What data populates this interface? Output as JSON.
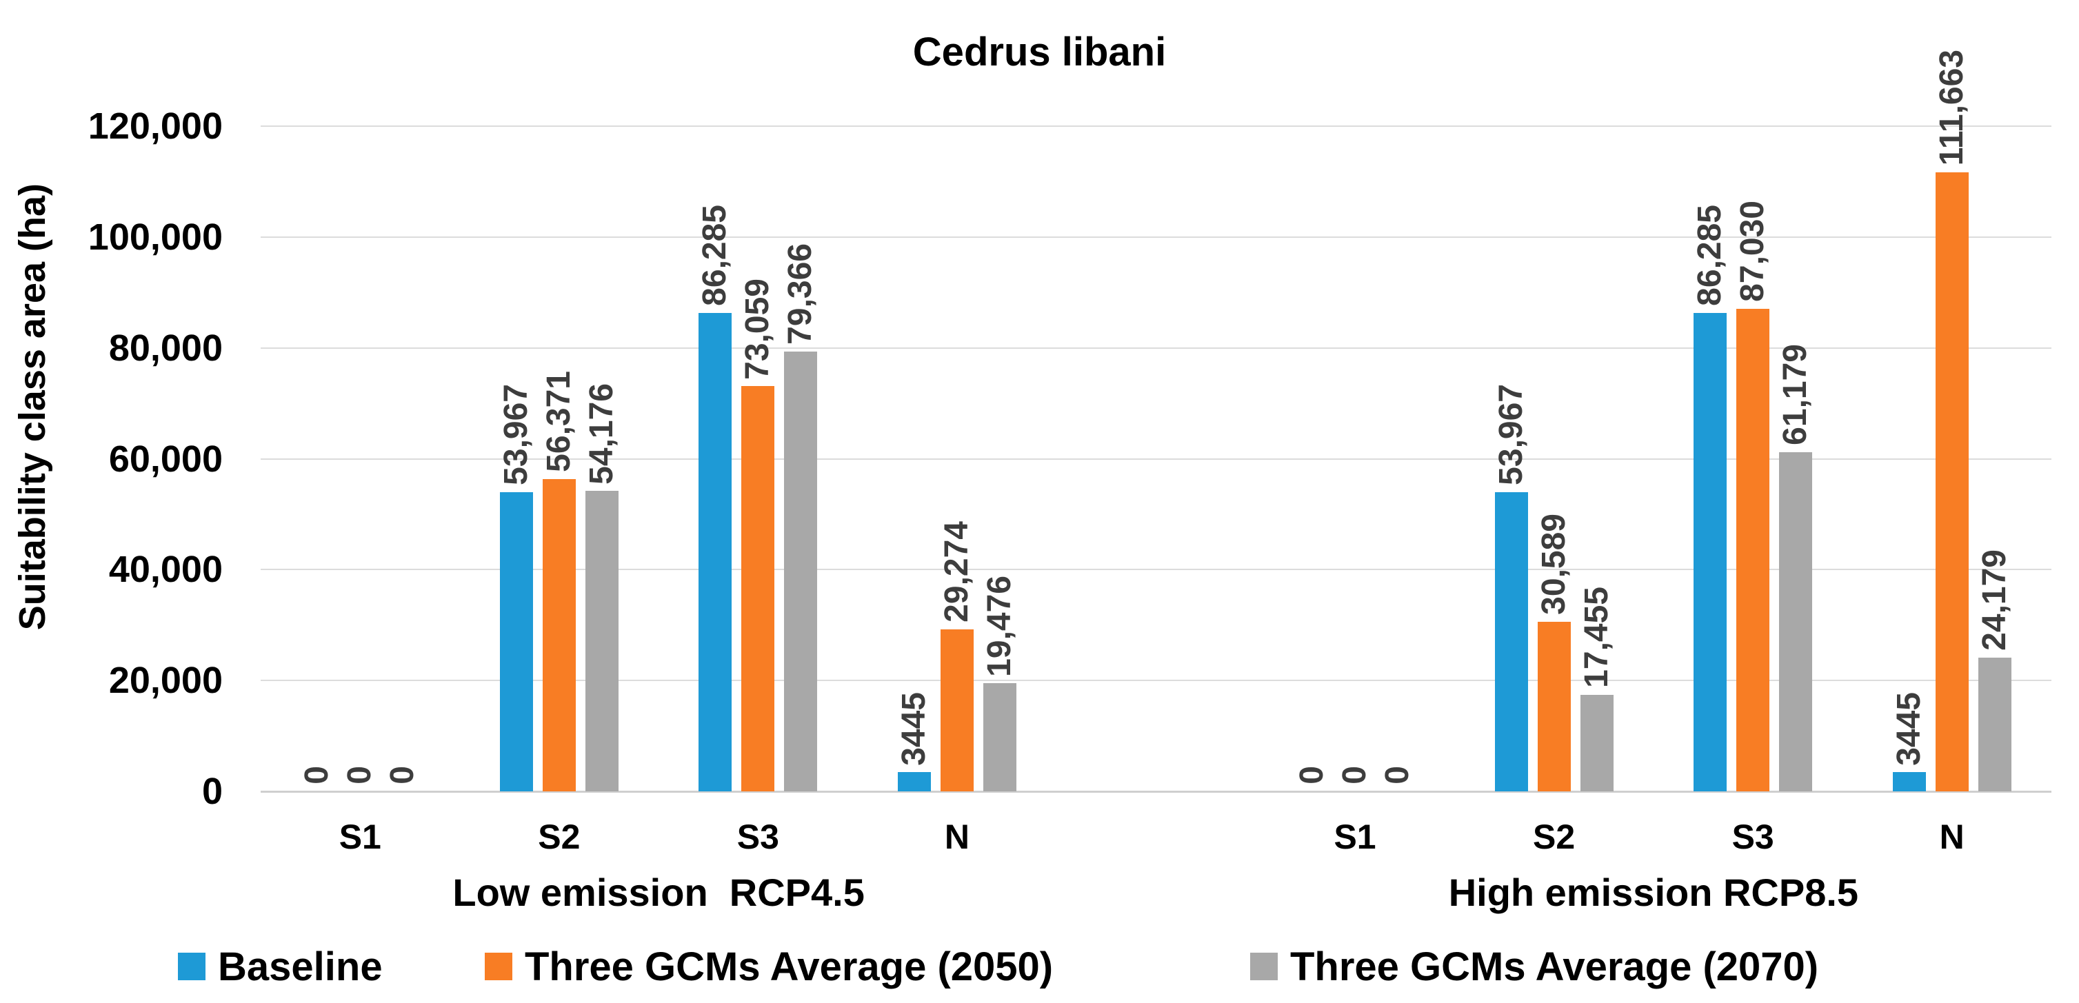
{
  "title": "Cedrus libani",
  "y_axis": {
    "label": "Suitability class area (ha)",
    "tick_labels_top_down": [
      "120,000",
      "100,000",
      "80,000",
      "60,000",
      "40,000",
      "20,000",
      "0"
    ]
  },
  "legend": [
    {
      "name": "Baseline",
      "color": "#1e9ad6"
    },
    {
      "name": "Three GCMs Average (2050)",
      "color": "#f87d24"
    },
    {
      "name": "Three GCMs Average (2070)",
      "color": "#a8a8a8"
    }
  ],
  "chart_data": {
    "type": "bar",
    "title": "Cedrus libani",
    "xlabel": "",
    "ylabel": "Suitability class area (ha)",
    "ylim": [
      0,
      120000
    ],
    "ytick_interval": 20000,
    "grid": true,
    "legend_position": "bottom",
    "colors": {
      "blue": "#1e9ad6",
      "orange": "#f87d24",
      "gray": "#a8a8a8",
      "gridline": "#dcdcdc",
      "data_label": "#3d3d3d"
    },
    "groups": [
      {
        "label": "Low emission  RCP4.5",
        "categories": [
          "S1",
          "S2",
          "S3",
          "N"
        ],
        "series": [
          {
            "name": "Baseline",
            "color": "#1e9ad6",
            "values": [
              0,
              53967,
              86285,
              3445
            ],
            "labels": [
              "0",
              "53,967",
              "86,285",
              "3445"
            ]
          },
          {
            "name": "Three GCMs Average (2050)",
            "color": "#f87d24",
            "values": [
              0,
              56371,
              73059,
              29274
            ],
            "labels": [
              "0",
              "56,371",
              "73,059",
              "29,274"
            ]
          },
          {
            "name": "Three GCMs Average (2070)",
            "color": "#a8a8a8",
            "values": [
              0,
              54176,
              79366,
              19476
            ],
            "labels": [
              "0",
              "54,176",
              "79,366",
              "19,476"
            ]
          }
        ]
      },
      {
        "label": "High emission RCP8.5",
        "categories": [
          "S1",
          "S2",
          "S3",
          "N"
        ],
        "series": [
          {
            "name": "Baseline",
            "color": "#1e9ad6",
            "values": [
              0,
              53967,
              86285,
              3445
            ],
            "labels": [
              "0",
              "53,967",
              "86,285",
              "3445"
            ]
          },
          {
            "name": "Three GCMs Average (2050)",
            "color": "#f87d24",
            "values": [
              0,
              30589,
              87030,
              111663
            ],
            "labels": [
              "0",
              "30,589",
              "87,030",
              "111,663"
            ]
          },
          {
            "name": "Three GCMs Average (2070)",
            "color": "#a8a8a8",
            "values": [
              0,
              17455,
              61179,
              24179
            ],
            "labels": [
              "0",
              "17,455",
              "61,179",
              "24,179"
            ]
          }
        ]
      }
    ]
  }
}
